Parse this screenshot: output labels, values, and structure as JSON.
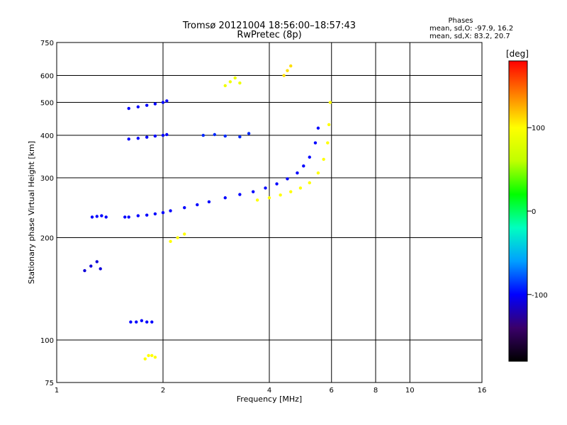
{
  "chart_data": {
    "type": "scatter",
    "title": "Tromsø 20121004 18:56:00–18:57:43",
    "subtitle": "RwPretec (8p)",
    "stats": {
      "heading": "Phases",
      "line_o": "mean, sd,O: -97.9, 16.2",
      "line_x": "mean, sd,X: 83.2, 20.7"
    },
    "xlabel": "Frequency [MHz]",
    "ylabel": "Stationary phase Virtual Height [km]",
    "x_scale": "log",
    "y_scale": "log",
    "xlim": [
      1,
      16
    ],
    "ylim": [
      75,
      750
    ],
    "xticks": [
      1,
      2,
      4,
      6,
      8,
      10,
      16
    ],
    "yticks": [
      75,
      100,
      200,
      300,
      400,
      500,
      600,
      750
    ],
    "xgrid": [
      2,
      4,
      6,
      8,
      10
    ],
    "ygrid": [
      100,
      200,
      300,
      400,
      500,
      600
    ],
    "colorbar": {
      "label": "[deg]",
      "range": [
        -180,
        180
      ],
      "ticks": [
        100,
        0,
        -100
      ],
      "colors": [
        "#000000",
        "#3a006a",
        "#0000ff",
        "#00a0ff",
        "#00ffc0",
        "#00ff00",
        "#c0ff00",
        "#ffff00",
        "#ff8000",
        "#ff0000"
      ]
    },
    "series": [
      {
        "x": [
          1.56,
          1.6,
          1.7,
          1.8,
          1.9,
          2.0,
          2.1,
          2.3,
          2.5,
          2.7,
          3.0,
          3.3,
          3.6,
          3.9,
          4.2,
          4.5,
          4.8,
          5.0,
          5.2,
          5.4,
          5.5
        ],
        "y": [
          230,
          230,
          232,
          233,
          235,
          237,
          240,
          245,
          250,
          255,
          262,
          268,
          273,
          280,
          288,
          298,
          310,
          325,
          345,
          380,
          420
        ],
        "phase": -100
      },
      {
        "x": [
          3.7,
          4.0,
          4.3,
          4.6,
          4.9,
          5.2,
          5.5,
          5.7,
          5.85,
          5.9,
          5.95
        ],
        "y": [
          258,
          262,
          267,
          273,
          280,
          290,
          310,
          340,
          380,
          430,
          500
        ],
        "phase": 100
      },
      {
        "x": [
          1.6,
          1.7,
          1.8,
          1.9,
          2.0,
          2.05
        ],
        "y": [
          480,
          485,
          490,
          495,
          500,
          505
        ],
        "phase": -100
      },
      {
        "x": [
          1.6,
          1.7,
          1.8,
          1.9,
          2.0,
          2.05
        ],
        "y": [
          390,
          392,
          395,
          398,
          400,
          402
        ],
        "phase": -100
      },
      {
        "x": [
          1.62,
          1.68,
          1.74,
          1.8,
          1.86
        ],
        "y": [
          113,
          113,
          114,
          113,
          113
        ],
        "phase": -100
      },
      {
        "x": [
          1.78,
          1.82,
          1.86,
          1.9
        ],
        "y": [
          88,
          90,
          90,
          89
        ],
        "phase": 100
      },
      {
        "x": [
          1.26,
          1.3,
          1.34,
          1.38
        ],
        "y": [
          230,
          231,
          232,
          230
        ],
        "phase": -100
      },
      {
        "x": [
          1.2,
          1.25,
          1.3,
          1.33
        ],
        "y": [
          160,
          165,
          170,
          162
        ],
        "phase": -110
      },
      {
        "x": [
          2.6,
          2.8,
          3.0,
          3.3,
          3.5
        ],
        "y": [
          400,
          402,
          398,
          396,
          405
        ],
        "phase": -90
      },
      {
        "x": [
          3.0,
          3.1,
          3.2,
          3.3
        ],
        "y": [
          560,
          575,
          590,
          570
        ],
        "phase": 90
      },
      {
        "x": [
          4.4,
          4.5,
          4.6
        ],
        "y": [
          600,
          620,
          640
        ],
        "phase": 110
      },
      {
        "x": [
          2.1,
          2.2,
          2.3
        ],
        "y": [
          195,
          200,
          205
        ],
        "phase": 100
      }
    ]
  }
}
